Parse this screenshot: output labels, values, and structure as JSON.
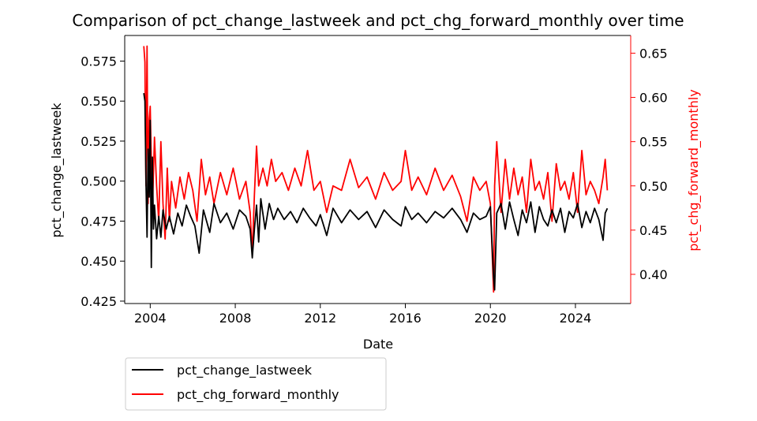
{
  "chart_data": {
    "type": "line",
    "title": "Comparison of pct_change_lastweek and pct_chg_forward_monthly over time",
    "xlabel": "Date",
    "ylabel_left": "pct_change_lastweek",
    "ylabel_right": "pct_chg_forward_monthly",
    "xlim": [
      2002.8,
      2026.6
    ],
    "ylim_left": [
      0.4235,
      0.591
    ],
    "ylim_right": [
      0.367,
      0.67
    ],
    "x_ticks": [
      2004,
      2008,
      2012,
      2016,
      2020,
      2024
    ],
    "y_ticks_left": [
      0.425,
      0.45,
      0.475,
      0.5,
      0.525,
      0.55,
      0.575
    ],
    "y_ticks_right": [
      0.4,
      0.45,
      0.5,
      0.55,
      0.6,
      0.65
    ],
    "grid": false,
    "legend_position": "below-left",
    "colors": {
      "left_series": "#000000",
      "right_series": "#ff0000",
      "right_axis": "#ff0000"
    },
    "series": [
      {
        "name": "pct_change_lastweek",
        "axis": "left",
        "x": [
          2003.7,
          2003.75,
          2003.8,
          2003.85,
          2003.9,
          2003.95,
          2004.0,
          2004.05,
          2004.1,
          2004.15,
          2004.2,
          2004.3,
          2004.4,
          2004.5,
          2004.6,
          2004.75,
          2004.9,
          2005.1,
          2005.3,
          2005.5,
          2005.7,
          2005.9,
          2006.1,
          2006.3,
          2006.5,
          2006.8,
          2007.0,
          2007.3,
          2007.6,
          2007.9,
          2008.2,
          2008.5,
          2008.7,
          2008.8,
          2008.9,
          2009.0,
          2009.1,
          2009.2,
          2009.4,
          2009.6,
          2009.8,
          2010.0,
          2010.3,
          2010.6,
          2010.9,
          2011.2,
          2011.5,
          2011.8,
          2012.0,
          2012.3,
          2012.6,
          2013.0,
          2013.4,
          2013.8,
          2014.2,
          2014.6,
          2015.0,
          2015.4,
          2015.8,
          2016.0,
          2016.3,
          2016.6,
          2017.0,
          2017.4,
          2017.8,
          2018.2,
          2018.6,
          2018.9,
          2019.2,
          2019.5,
          2019.8,
          2020.0,
          2020.15,
          2020.2,
          2020.3,
          2020.5,
          2020.7,
          2020.9,
          2021.1,
          2021.3,
          2021.5,
          2021.7,
          2021.9,
          2022.1,
          2022.3,
          2022.5,
          2022.7,
          2022.9,
          2023.1,
          2023.3,
          2023.5,
          2023.7,
          2023.9,
          2024.1,
          2024.3,
          2024.5,
          2024.7,
          2024.9,
          2025.1,
          2025.3,
          2025.4,
          2025.5
        ],
        "values": [
          0.555,
          0.55,
          0.5,
          0.465,
          0.52,
          0.49,
          0.538,
          0.446,
          0.515,
          0.47,
          0.485,
          0.464,
          0.478,
          0.465,
          0.482,
          0.47,
          0.478,
          0.467,
          0.48,
          0.472,
          0.485,
          0.478,
          0.472,
          0.455,
          0.482,
          0.468,
          0.486,
          0.474,
          0.48,
          0.47,
          0.482,
          0.478,
          0.47,
          0.452,
          0.47,
          0.485,
          0.462,
          0.489,
          0.47,
          0.486,
          0.476,
          0.483,
          0.476,
          0.481,
          0.474,
          0.483,
          0.477,
          0.472,
          0.479,
          0.466,
          0.483,
          0.474,
          0.482,
          0.476,
          0.481,
          0.471,
          0.482,
          0.476,
          0.472,
          0.484,
          0.476,
          0.48,
          0.474,
          0.481,
          0.477,
          0.483,
          0.476,
          0.468,
          0.48,
          0.476,
          0.478,
          0.484,
          0.44,
          0.432,
          0.48,
          0.486,
          0.47,
          0.487,
          0.476,
          0.466,
          0.482,
          0.474,
          0.487,
          0.468,
          0.484,
          0.476,
          0.472,
          0.482,
          0.474,
          0.483,
          0.468,
          0.481,
          0.477,
          0.486,
          0.471,
          0.481,
          0.474,
          0.483,
          0.476,
          0.463,
          0.48,
          0.483
        ]
      },
      {
        "name": "pct_chg_forward_monthly",
        "axis": "right",
        "x": [
          2003.7,
          2003.75,
          2003.8,
          2003.85,
          2003.9,
          2003.95,
          2004.0,
          2004.1,
          2004.2,
          2004.3,
          2004.4,
          2004.5,
          2004.6,
          2004.7,
          2004.8,
          2004.9,
          2005.0,
          2005.2,
          2005.4,
          2005.6,
          2005.8,
          2006.0,
          2006.2,
          2006.4,
          2006.6,
          2006.8,
          2007.0,
          2007.3,
          2007.6,
          2007.9,
          2008.2,
          2008.5,
          2008.7,
          2008.8,
          2008.9,
          2009.0,
          2009.1,
          2009.3,
          2009.5,
          2009.7,
          2009.9,
          2010.2,
          2010.5,
          2010.8,
          2011.1,
          2011.4,
          2011.7,
          2012.0,
          2012.3,
          2012.6,
          2013.0,
          2013.4,
          2013.8,
          2014.2,
          2014.6,
          2015.0,
          2015.4,
          2015.8,
          2016.0,
          2016.3,
          2016.6,
          2017.0,
          2017.4,
          2017.8,
          2018.2,
          2018.6,
          2018.9,
          2019.2,
          2019.5,
          2019.8,
          2020.0,
          2020.15,
          2020.2,
          2020.3,
          2020.5,
          2020.7,
          2020.9,
          2021.1,
          2021.3,
          2021.5,
          2021.7,
          2021.9,
          2022.1,
          2022.3,
          2022.5,
          2022.7,
          2022.9,
          2023.1,
          2023.3,
          2023.5,
          2023.7,
          2023.9,
          2024.1,
          2024.3,
          2024.5,
          2024.7,
          2024.9,
          2025.1,
          2025.3,
          2025.4,
          2025.5
        ],
        "values": [
          0.658,
          0.64,
          0.5,
          0.658,
          0.48,
          0.575,
          0.59,
          0.47,
          0.555,
          0.5,
          0.46,
          0.55,
          0.48,
          0.44,
          0.52,
          0.46,
          0.505,
          0.475,
          0.51,
          0.485,
          0.515,
          0.495,
          0.46,
          0.53,
          0.49,
          0.51,
          0.48,
          0.515,
          0.49,
          0.52,
          0.485,
          0.505,
          0.47,
          0.423,
          0.49,
          0.545,
          0.5,
          0.52,
          0.5,
          0.53,
          0.505,
          0.515,
          0.495,
          0.52,
          0.5,
          0.54,
          0.495,
          0.505,
          0.47,
          0.5,
          0.495,
          0.53,
          0.498,
          0.51,
          0.485,
          0.515,
          0.495,
          0.505,
          0.54,
          0.495,
          0.51,
          0.49,
          0.52,
          0.495,
          0.512,
          0.488,
          0.46,
          0.51,
          0.495,
          0.505,
          0.48,
          0.38,
          0.5,
          0.55,
          0.47,
          0.53,
          0.485,
          0.52,
          0.49,
          0.51,
          0.47,
          0.53,
          0.495,
          0.505,
          0.485,
          0.515,
          0.46,
          0.525,
          0.495,
          0.505,
          0.485,
          0.515,
          0.47,
          0.54,
          0.49,
          0.505,
          0.495,
          0.48,
          0.51,
          0.53,
          0.495
        ]
      }
    ]
  }
}
